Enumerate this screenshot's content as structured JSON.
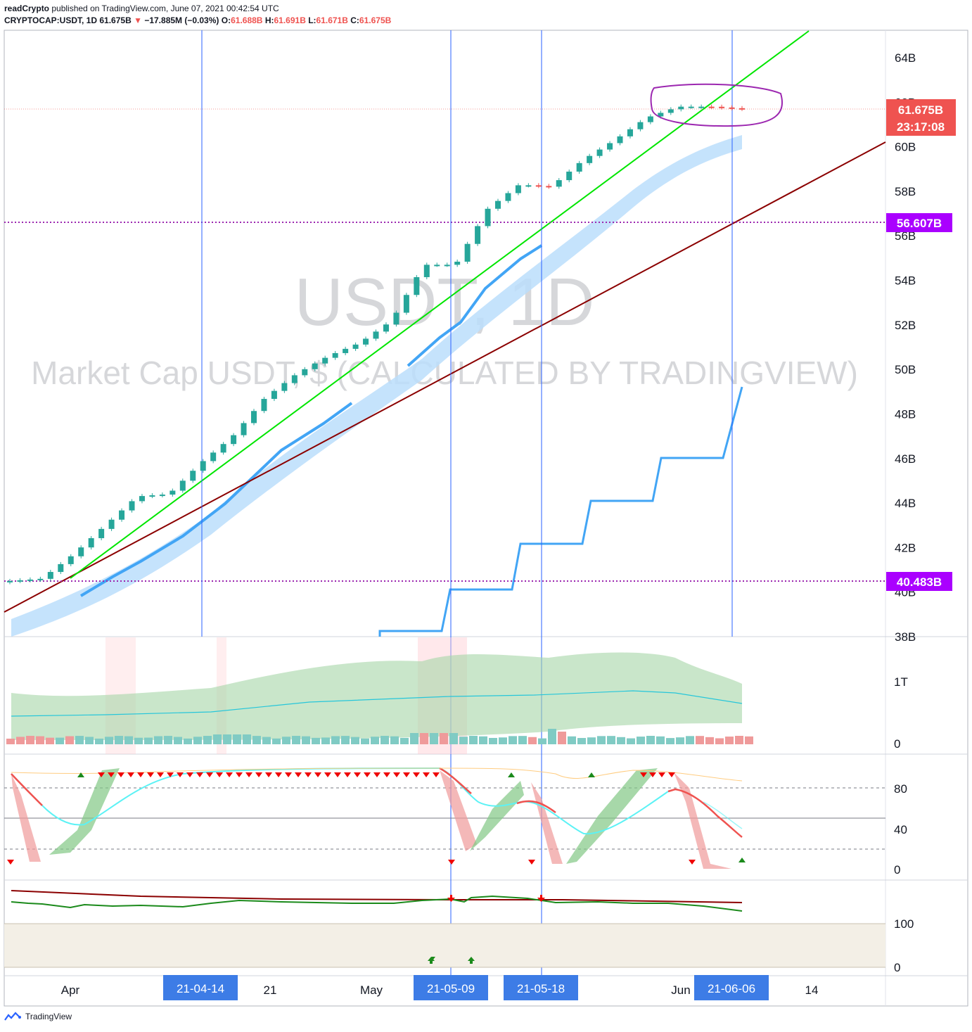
{
  "header": {
    "publisher": "readCrypto",
    "published_text": "published on TradingView.com, June 07, 2021 00:42:54 UTC",
    "symbol": "CRYPTOCAP:USDT, 1D",
    "last": "61.675B",
    "change_arrow": "▼",
    "change": "−17.885M (−0.03%)",
    "o_label": "O:",
    "o": "61.688B",
    "h_label": "H:",
    "h": "61.691B",
    "l_label": "L:",
    "l": "61.671B",
    "c_label": "C:",
    "c": "61.675B"
  },
  "watermark": {
    "symbol": "USDT, 1D",
    "description": "Market Cap USDT, $ (CALCULATED BY TRADINGVIEW)"
  },
  "price_axis_labels": [
    "64B",
    "62B",
    "60B",
    "58B",
    "56B",
    "54B",
    "52B",
    "50B",
    "48B",
    "46B",
    "44B",
    "42B",
    "40B",
    "38B"
  ],
  "price_badges": {
    "last_price": "61.675B",
    "countdown": "23:17:08",
    "level_high": "56.607B",
    "level_low": "40.483B"
  },
  "volume_axis_labels": [
    "1T",
    "0"
  ],
  "stoch_axis_labels": [
    "80",
    "40",
    "0"
  ],
  "osc_axis_labels": [
    "100",
    "0"
  ],
  "time_axis": {
    "ticks": [
      "Apr",
      "21",
      "May",
      "Jun",
      "14"
    ],
    "highlights": [
      "21-04-14",
      "21-05-09",
      "21-05-18",
      "21-06-06"
    ]
  },
  "colors": {
    "up_candle": "#26a69a",
    "down_candle": "#ef5350",
    "trend_green": "#00e600",
    "trend_red": "#8b0000",
    "ma_blue": "#42a5f5",
    "band_blue": "#bbdefb",
    "level_purple": "#9c27b0",
    "badge_purple": "#aa00ff",
    "vertical_line": "#2962ff",
    "date_badge": "#2962ff"
  },
  "chart_data": {
    "type": "line",
    "title": "Market Cap USDT, $ (CALCULATED BY TRADINGVIEW)",
    "symbol": "CRYPTOCAP:USDT",
    "interval": "1D",
    "ylim": [
      38,
      65
    ],
    "y_unit": "B",
    "x": [
      "2021-03-25",
      "2021-03-28",
      "2021-04-01",
      "2021-04-04",
      "2021-04-07",
      "2021-04-10",
      "2021-04-14",
      "2021-04-17",
      "2021-04-21",
      "2021-04-24",
      "2021-04-28",
      "2021-05-01",
      "2021-05-04",
      "2021-05-07",
      "2021-05-09",
      "2021-05-12",
      "2021-05-15",
      "2021-05-18",
      "2021-05-21",
      "2021-05-24",
      "2021-05-27",
      "2021-05-30",
      "2021-06-02",
      "2021-06-06"
    ],
    "series": [
      {
        "values": [
          40.5,
          40.6,
          41.7,
          43.0,
          44.3,
          44.4,
          45.8,
          47.0,
          48.7,
          49.8,
          50.6,
          51.2,
          52.2,
          54.7,
          54.7,
          57.2,
          58.3,
          58.2,
          59.4,
          60.3,
          61.3,
          61.8,
          61.8,
          61.7
        ]
      }
    ],
    "levels": [
      56.607,
      40.483
    ],
    "vertical_markers": [
      "21-04-14",
      "21-05-09",
      "21-05-18",
      "21-06-06"
    ]
  }
}
